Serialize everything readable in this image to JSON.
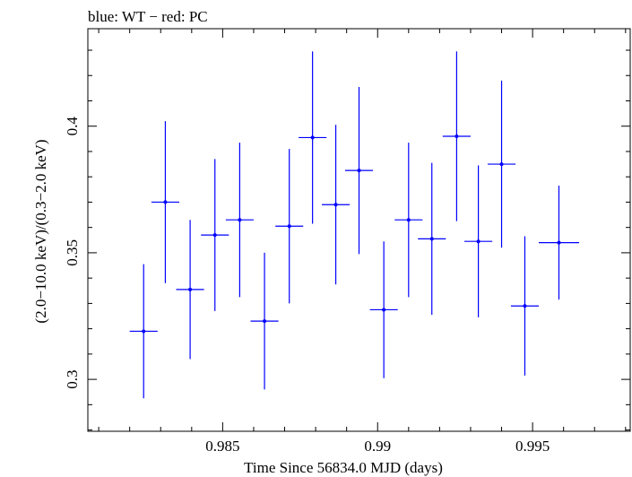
{
  "chart_data": {
    "type": "scatter",
    "title": "blue: WT − red: PC",
    "xlabel": "Time Since 56834.0 MJD (days)",
    "ylabel": "(2.0−10.0 keV)/(0.3−2.0 keV)",
    "xlim": [
      0.98065,
      0.99815
    ],
    "ylim": [
      0.2795,
      0.4385
    ],
    "x_ticks": [
      0.985,
      0.99,
      0.995
    ],
    "x_tick_labels": [
      "0.985",
      "0.99",
      "0.995"
    ],
    "y_ticks": [
      0.3,
      0.35,
      0.4
    ],
    "y_tick_labels": [
      "0.3",
      "0.35",
      "0.4"
    ],
    "x_minor_step": 0.001,
    "y_minor_step": 0.01,
    "grid": false,
    "series": [
      {
        "color": "#0000ff",
        "points": [
          {
            "x": 0.98245,
            "xerr": 0.00045,
            "y": 0.319,
            "yerr": 0.0265
          },
          {
            "x": 0.98315,
            "xerr": 0.00045,
            "y": 0.37,
            "yerr": 0.032
          },
          {
            "x": 0.98395,
            "xerr": 0.00045,
            "y": 0.3355,
            "yerr": 0.0275
          },
          {
            "x": 0.98475,
            "xerr": 0.00045,
            "y": 0.357,
            "yerr": 0.03
          },
          {
            "x": 0.98555,
            "xerr": 0.00045,
            "y": 0.363,
            "yerr": 0.0305
          },
          {
            "x": 0.98635,
            "xerr": 0.00045,
            "y": 0.323,
            "yerr": 0.027
          },
          {
            "x": 0.98715,
            "xerr": 0.00045,
            "y": 0.3605,
            "yerr": 0.0305
          },
          {
            "x": 0.9879,
            "xerr": 0.00045,
            "y": 0.3955,
            "yerr": 0.034
          },
          {
            "x": 0.98865,
            "xerr": 0.00045,
            "y": 0.369,
            "yerr": 0.0315
          },
          {
            "x": 0.9894,
            "xerr": 0.00045,
            "y": 0.3825,
            "yerr": 0.033
          },
          {
            "x": 0.9902,
            "xerr": 0.00045,
            "y": 0.3275,
            "yerr": 0.027
          },
          {
            "x": 0.991,
            "xerr": 0.00045,
            "y": 0.363,
            "yerr": 0.0305
          },
          {
            "x": 0.99175,
            "xerr": 0.00045,
            "y": 0.3555,
            "yerr": 0.03
          },
          {
            "x": 0.99255,
            "xerr": 0.00045,
            "y": 0.396,
            "yerr": 0.0335
          },
          {
            "x": 0.99325,
            "xerr": 0.00045,
            "y": 0.3545,
            "yerr": 0.03
          },
          {
            "x": 0.994,
            "xerr": 0.00045,
            "y": 0.385,
            "yerr": 0.033
          },
          {
            "x": 0.99475,
            "xerr": 0.00045,
            "y": 0.329,
            "yerr": 0.0275
          },
          {
            "x": 0.99585,
            "xerr": 0.00065,
            "y": 0.354,
            "yerr": 0.0225
          }
        ]
      }
    ]
  }
}
